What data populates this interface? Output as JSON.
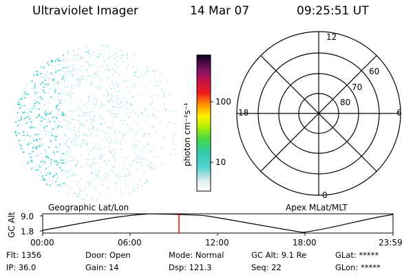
{
  "header": {
    "instrument": "Ultraviolet Imager",
    "date": "14 Mar 07",
    "time": "09:25:51 UT"
  },
  "colorbar": {
    "label": "photon cm⁻²s⁻¹",
    "ticks": [
      "100",
      "10"
    ]
  },
  "polar": {
    "lat_labels": [
      "60",
      "70",
      "80"
    ],
    "mlt_labels": {
      "top": "12",
      "right": "6",
      "bottom": "0",
      "left": "18"
    }
  },
  "altitude_panel": {
    "ylabel": "GC Alt",
    "left_title": "Geographic Lat/Lon",
    "right_title": "Apex MLat/MLT",
    "y_ticks": [
      "9.0",
      "1.8"
    ],
    "x_ticks": [
      "00:00",
      "06:00",
      "12:00",
      "18:00",
      "23:59"
    ],
    "marker_time": "09:25:51",
    "marker_color": "#ff0000"
  },
  "info": {
    "flt": "Flt: 1356",
    "ip": "IP: 36.0",
    "door": "Door: Open",
    "gain": "Gain: 14",
    "mode": "Mode: Normal",
    "dsp": "Dsp:  121.3",
    "gcalt": "GC Alt: 9.1 Re",
    "seq": "Seq: 22",
    "glat": "GLat: *****",
    "glon": "GLon: *****"
  },
  "colors": {
    "speckle": "#3ad0d0",
    "speckle_light": "#bde9ef",
    "grid": "#000000"
  }
}
